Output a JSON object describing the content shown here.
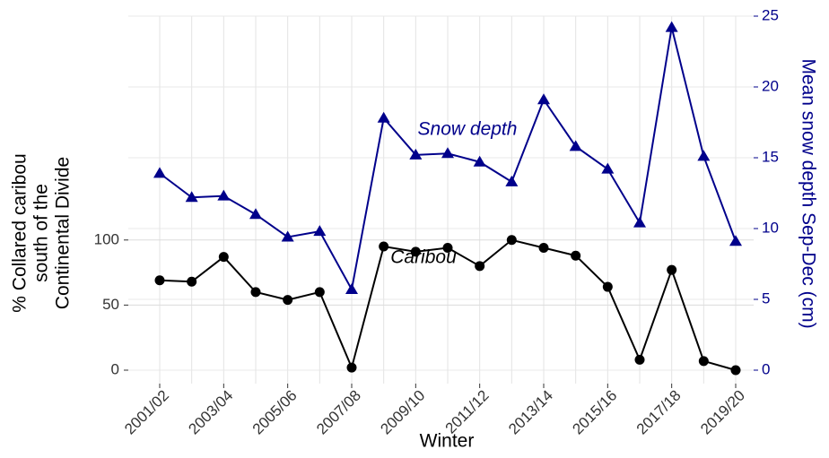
{
  "chart_data": {
    "type": "line",
    "x_label": "Winter",
    "y_label": [
      "% Collared caribou",
      "south of the",
      "Continental Divide"
    ],
    "y2_label": "Mean snow depth Sep-Dec (cm)",
    "annotations": [
      "Snow depth",
      "Caribou"
    ],
    "categories": [
      "2001/02",
      null,
      "2003/04",
      null,
      "2005/06",
      null,
      "2007/08",
      null,
      "2009/10",
      null,
      "2011/12",
      null,
      "2013/14",
      null,
      "2015/16",
      null,
      "2017/18",
      null,
      "2019/20"
    ],
    "series": [
      {
        "name": "Caribou",
        "color": "#000000",
        "marker": "circle",
        "values": [
          69,
          68,
          87,
          60,
          54,
          60,
          2,
          95,
          91,
          94,
          80,
          100,
          94,
          88,
          64,
          8,
          77,
          7,
          0
        ]
      },
      {
        "name": "Snow depth",
        "color": "#00008b",
        "marker": "triangle",
        "axis": "y2",
        "values": [
          13.9,
          12.2,
          12.3,
          11.0,
          9.4,
          9.8,
          5.7,
          17.8,
          15.2,
          15.3,
          14.7,
          13.3,
          19.1,
          15.8,
          14.2,
          10.4,
          24.2,
          15.1,
          9.1
        ]
      }
    ],
    "ylim": [
      0,
      272
    ],
    "yticks": [
      0,
      50,
      100
    ],
    "y2lim": [
      0,
      25
    ],
    "y2ticks": [
      0,
      5,
      10,
      15,
      20,
      25
    ],
    "grid": true
  }
}
